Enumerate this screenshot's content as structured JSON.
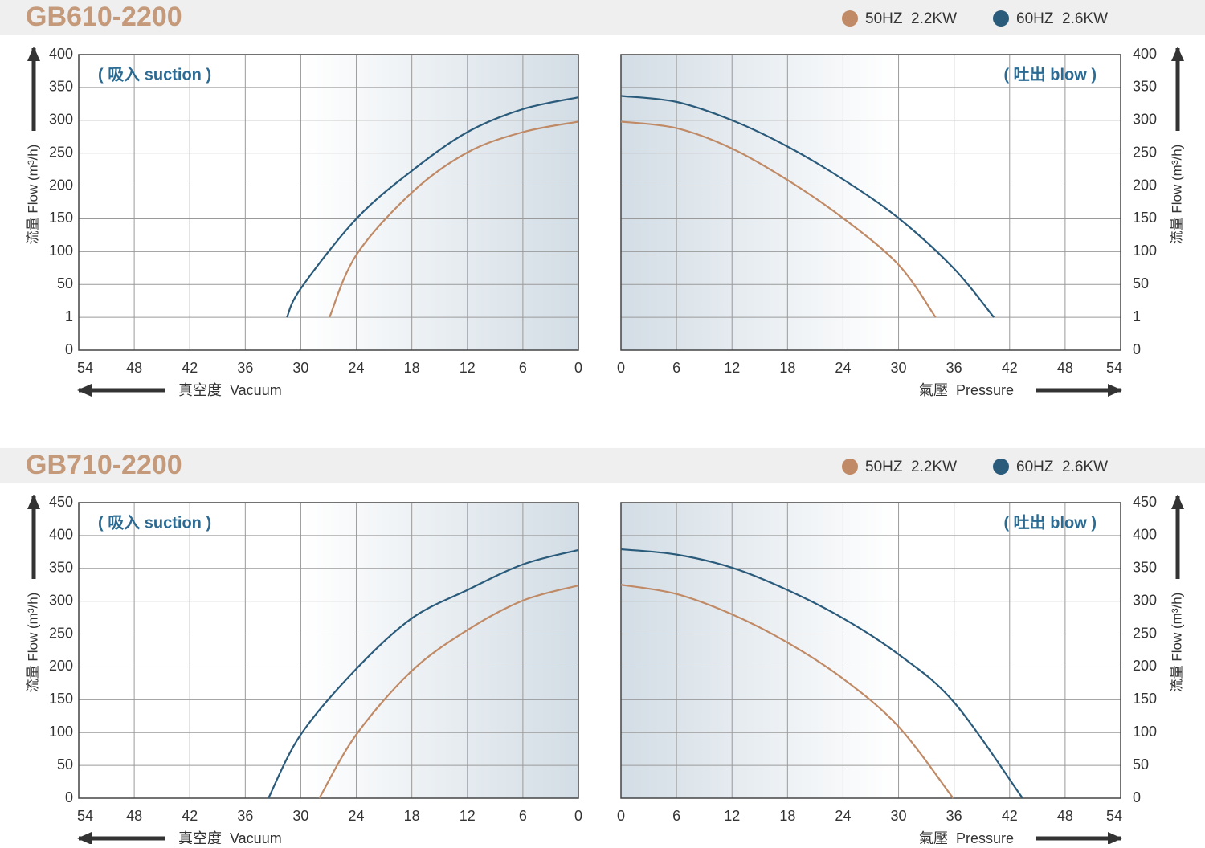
{
  "chart_data": [
    {
      "type": "line",
      "title": "GB610-2200",
      "ylabel": "流量 Flow (m³/h)",
      "ylim": [
        0,
        400
      ],
      "yticks": [
        0,
        1,
        50,
        100,
        150,
        200,
        250,
        300,
        350,
        400
      ],
      "grid": true,
      "legend": "top-right",
      "series": [
        {
          "name": "50HZ  2.2KW",
          "color": "#c08a66"
        },
        {
          "name": "60HZ  2.6KW",
          "color": "#2b5b7b"
        }
      ],
      "panels": [
        {
          "annotation": "( 吸入 suction )",
          "xlabel": "真空度  Vacuum",
          "xlim": [
            54,
            0
          ],
          "xticks": [
            54,
            48,
            42,
            36,
            30,
            24,
            18,
            12,
            6,
            0
          ],
          "series": [
            {
              "x": [
                26.9,
                24,
                18,
                12,
                6,
                0
              ],
              "values": [
                1,
                95,
                190,
                251,
                282,
                298
              ]
            },
            {
              "x": [
                31.5,
                30,
                24,
                18,
                12,
                6,
                0
              ],
              "values": [
                1,
                44,
                150,
                223,
                282,
                317,
                335
              ]
            }
          ]
        },
        {
          "annotation": "( 吐出 blow )",
          "xlabel": "氣壓  Pressure",
          "xlim": [
            0,
            54
          ],
          "xticks": [
            0,
            6,
            12,
            18,
            24,
            30,
            36,
            42,
            48,
            54
          ],
          "series": [
            {
              "x": [
                0,
                6,
                12,
                18,
                24,
                30,
                34
              ],
              "values": [
                298,
                288,
                257,
                209,
                151,
                80,
                1
              ]
            },
            {
              "x": [
                0,
                6,
                12,
                18,
                24,
                30,
                36,
                40.3
              ],
              "values": [
                337,
                328,
                300,
                260,
                210,
                151,
                74,
                1
              ]
            }
          ]
        }
      ]
    },
    {
      "type": "line",
      "title": "GB710-2200",
      "ylabel": "流量 Flow (m³/h)",
      "ylim": [
        0,
        450
      ],
      "yticks": [
        0,
        50,
        100,
        150,
        200,
        250,
        300,
        350,
        400,
        450
      ],
      "grid": true,
      "legend": "top-right",
      "series": [
        {
          "name": "50HZ  2.2KW",
          "color": "#c08a66"
        },
        {
          "name": "60HZ  2.6KW",
          "color": "#2b5b7b"
        }
      ],
      "panels": [
        {
          "annotation": "( 吸入 suction )",
          "xlabel": "真空度  Vacuum",
          "xlim": [
            54,
            0
          ],
          "xticks": [
            54,
            48,
            42,
            36,
            30,
            24,
            18,
            12,
            6,
            0
          ],
          "series": [
            {
              "x": [
                28,
                24,
                18,
                12,
                6,
                0
              ],
              "values": [
                0,
                97,
                194,
                256,
                301,
                324
              ]
            },
            {
              "x": [
                33.5,
                30,
                24,
                18,
                12,
                6,
                0
              ],
              "values": [
                0,
                97,
                197,
                274,
                317,
                356,
                378
              ]
            }
          ]
        },
        {
          "annotation": "( 吐出 blow )",
          "xlabel": "氣壓  Pressure",
          "xlim": [
            0,
            54
          ],
          "xticks": [
            0,
            6,
            12,
            18,
            24,
            30,
            36,
            42,
            48,
            54
          ],
          "series": [
            {
              "x": [
                0,
                6,
                12,
                18,
                24,
                30,
                35.9
              ],
              "values": [
                325,
                311,
                280,
                237,
                182,
                109,
                0
              ]
            },
            {
              "x": [
                0,
                6,
                12,
                18,
                24,
                30,
                36,
                43.4
              ],
              "values": [
                379,
                371,
                351,
                317,
                274,
                219,
                146,
                0
              ]
            }
          ]
        }
      ]
    }
  ]
}
